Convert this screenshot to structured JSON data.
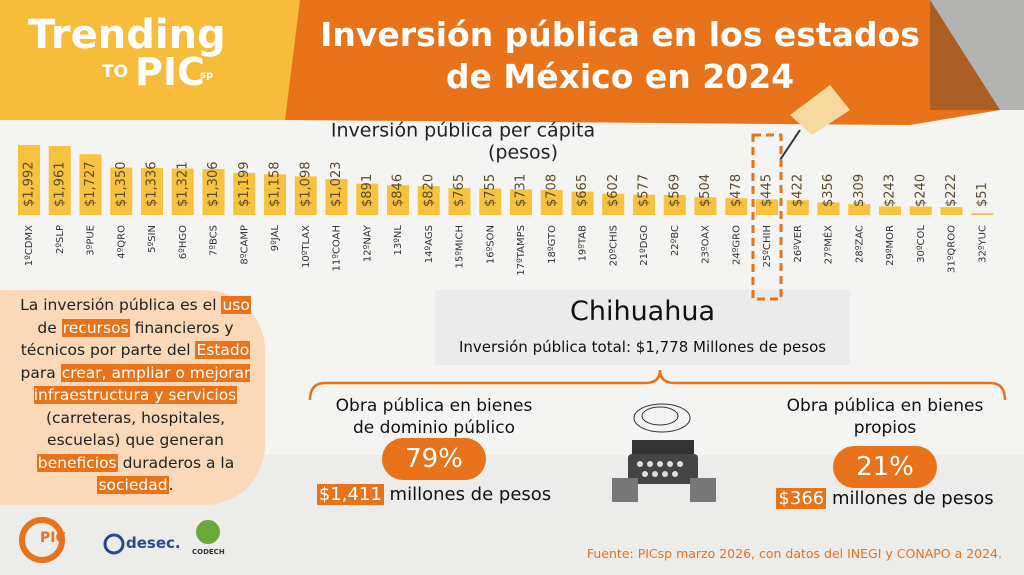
{
  "header": {
    "brand_line1": "Trending",
    "brand_line2": "TO",
    "brand_line3": "PIC",
    "brand_sup": "sp",
    "title_line1": "Inversión pública en los estados",
    "title_line2": "de México en 2024"
  },
  "chart_data": {
    "type": "bar",
    "title": "Inversión pública per cápita",
    "subtitle": "(pesos)",
    "categories": [
      "1ºCDMX",
      "2ºSLP",
      "3ºPUE",
      "4ºQRO",
      "5ºSIN",
      "6ºHGO",
      "7ºBCS",
      "8ºCAMP",
      "9ºJAL",
      "10ºTLAX",
      "11ºCOAH",
      "12ºNAY",
      "13ºNL",
      "14ºAGS",
      "15ºMICH",
      "16ºSON",
      "17ºTAMPS",
      "18ºGTO",
      "19ºTAB",
      "20ºCHIS",
      "21ºDGO",
      "22ºBC",
      "23ºOAX",
      "24ºGRO",
      "25ºCHIH",
      "26ºVER",
      "27ºMÉX",
      "28ºZAC",
      "29ºMOR",
      "30ºCOL",
      "31ºQROO",
      "32ºYUC"
    ],
    "values": [
      1992,
      1961,
      1727,
      1350,
      1336,
      1321,
      1306,
      1199,
      1158,
      1098,
      1023,
      891,
      846,
      820,
      765,
      755,
      731,
      708,
      665,
      602,
      577,
      569,
      504,
      478,
      445,
      422,
      356,
      309,
      243,
      240,
      222,
      51
    ],
    "value_labels": [
      "$1,992",
      "$1,961",
      "$1,727",
      "$1,350",
      "$1,336",
      "$1,321",
      "$1,306",
      "$1,199",
      "$1,158",
      "$1,098",
      "$1,023",
      "$891",
      "$846",
      "$820",
      "$765",
      "$755",
      "$731",
      "$708",
      "$665",
      "$602",
      "$577",
      "$569",
      "$504",
      "$478",
      "$445",
      "$422",
      "$356",
      "$309",
      "$243",
      "$240",
      "$222",
      "$51"
    ],
    "color": "#f7c23e"
  },
  "definition": [
    {
      "text": "La inversión pública es el ",
      "highlight": false
    },
    {
      "text": "uso",
      "highlight": true
    },
    {
      "text": " de ",
      "highlight": false
    },
    {
      "text": "recursos",
      "highlight": true
    },
    {
      "text": " financieros y técnicos por parte del ",
      "highlight": false
    },
    {
      "text": "Estado",
      "highlight": true
    },
    {
      "text": " para ",
      "highlight": false
    },
    {
      "text": "crear, ampliar o mejorar infraestructura y servicios",
      "highlight": true
    },
    {
      "text": " (carreteras, hospitales, escuelas) que generan ",
      "highlight": false
    },
    {
      "text": "beneficios",
      "highlight": true
    },
    {
      "text": " duraderos a la ",
      "highlight": false
    },
    {
      "text": "sociedad",
      "highlight": true
    },
    {
      "text": ".",
      "highlight": false
    }
  ],
  "detail": {
    "state": "Chihuahua",
    "total": "Inversión pública total: $1,778 Millones de pesos",
    "left": {
      "title_line1": "Obra pública en bienes",
      "title_line2": "de dominio público",
      "percent": "79%",
      "amount": "$1,411",
      "amount_suffix": " millones de pesos"
    },
    "right": {
      "title_line1": "Obra pública en bienes",
      "title_line2": "propios",
      "percent": "21%",
      "amount": "$366",
      "amount_suffix": " millones de pesos"
    }
  },
  "logos": {
    "pic": "PIC",
    "desec": "desec.",
    "codech": "CODECH"
  },
  "source": "Fuente: PICsp marzo 2026, con datos del INEGI y CONAPO a 2024."
}
